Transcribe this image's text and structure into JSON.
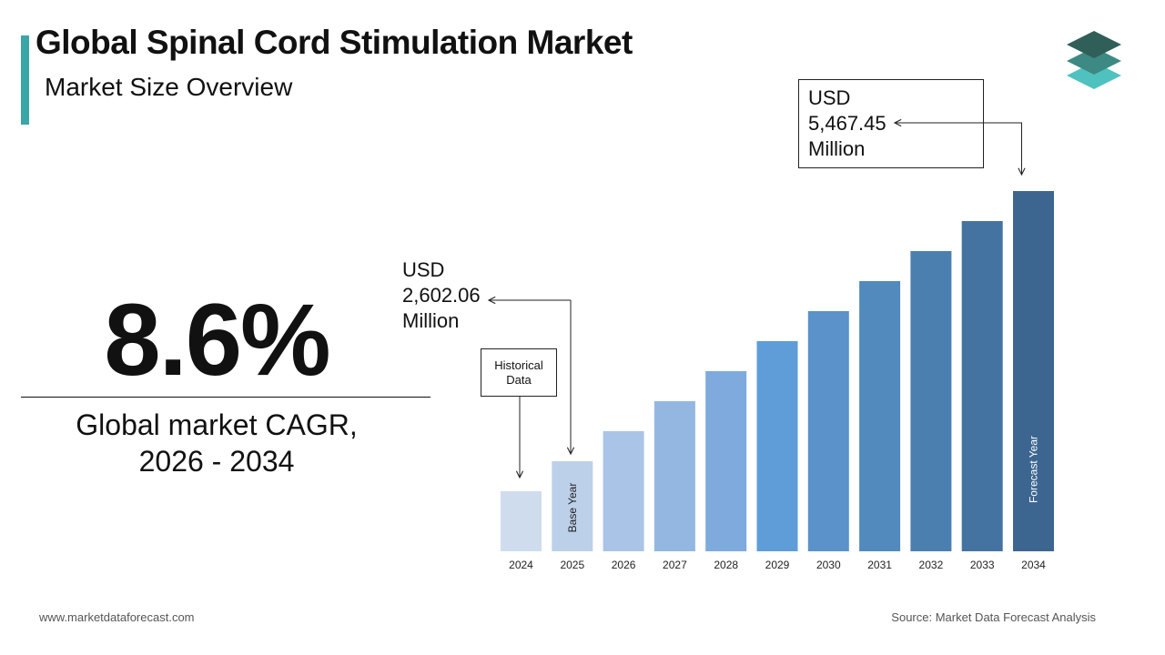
{
  "header": {
    "title": "Global Spinal Cord Stimulation Market",
    "subtitle": "Market Size Overview"
  },
  "logo": {
    "icon": "stacked-layers-logo-icon",
    "colors": [
      "#2f5f58",
      "#3c8a83",
      "#4fc2bf"
    ]
  },
  "cagr": {
    "value": "8.6%",
    "label_line1": "Global market CAGR,",
    "label_line2": "2026 - 2034"
  },
  "callouts": {
    "start": {
      "line1": "USD",
      "line2": "2,602.06",
      "line3": "Million"
    },
    "end": {
      "line1": "USD",
      "line2": "5,467.45",
      "line3": "Million"
    },
    "historical": {
      "line1": "Historical",
      "line2": "Data"
    }
  },
  "chart_data": {
    "type": "bar",
    "categories": [
      "2024",
      "2025",
      "2026",
      "2027",
      "2028",
      "2029",
      "2030",
      "2031",
      "2032",
      "2033",
      "2034"
    ],
    "values": [
      null,
      2602.06,
      null,
      null,
      null,
      null,
      null,
      null,
      null,
      null,
      5467.45
    ],
    "colors": [
      "#cfdcee",
      "#bdd0ea",
      "#a9c4e6",
      "#93b7e0",
      "#7eaade",
      "#5e9dd8",
      "#5a92c9",
      "#528abd",
      "#4b7fb0",
      "#4573a1",
      "#3c6690"
    ],
    "bar_annotations": {
      "2025": "Base Year",
      "2034": "Forecast Year"
    },
    "grid": false,
    "legend": "none"
  },
  "footer": {
    "website": "www.marketdataforecast.com",
    "source": "Source: Market Data Forecast Analysis"
  }
}
